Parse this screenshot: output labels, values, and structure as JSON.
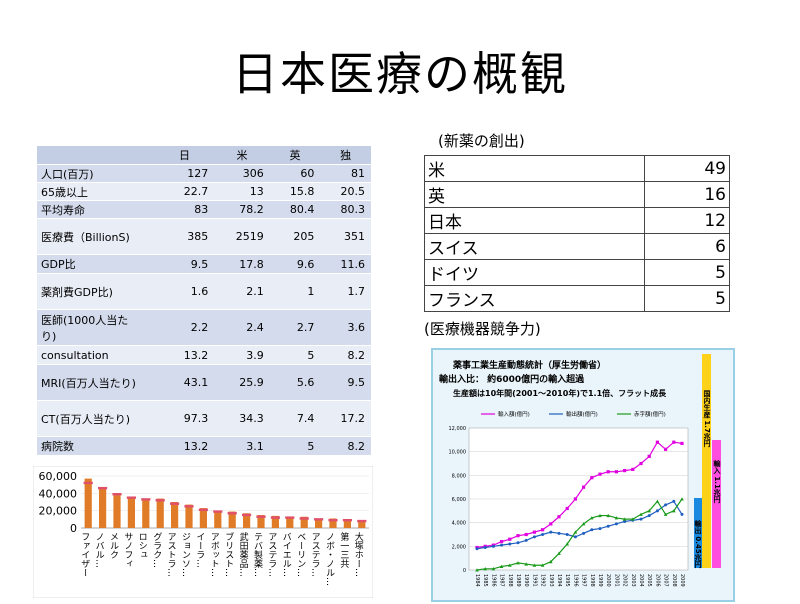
{
  "title": "日本医療の概観",
  "stats_table": {
    "headers": [
      "",
      "日",
      "米",
      "英",
      "独"
    ],
    "rows": [
      {
        "label": "人口(百万)",
        "values": [
          "127",
          "306",
          "60",
          "81"
        ]
      },
      {
        "label": "65歳以上",
        "values": [
          "22.7",
          "13",
          "15.8",
          "20.5"
        ]
      },
      {
        "label": "平均寿命",
        "values": [
          "83",
          "78.2",
          "80.4",
          "80.3"
        ]
      },
      {
        "label": "医療費（BillionS)",
        "values": [
          "385",
          "2519",
          "205",
          "351"
        ]
      },
      {
        "label": "GDP比",
        "values": [
          "9.5",
          "17.8",
          "9.6",
          "11.6"
        ]
      },
      {
        "label": "薬剤費GDP比)",
        "values": [
          "1.6",
          "2.1",
          "1",
          "1.7"
        ]
      },
      {
        "label": "医師(1000人当たり)",
        "values": [
          "2.2",
          "2.4",
          "2.7",
          "3.6"
        ]
      },
      {
        "label": "consultation",
        "values": [
          "13.2",
          "3.9",
          "5",
          "8.2"
        ]
      },
      {
        "label": "MRI(百万人当たり)",
        "values": [
          "43.1",
          "25.9",
          "5.6",
          "9.5"
        ]
      },
      {
        "label": "CT(百万人当たり)",
        "values": [
          "97.3",
          "34.3",
          "7.4",
          "17.2"
        ]
      },
      {
        "label": "病院数",
        "values": [
          "13.2",
          "3.1",
          "5",
          "8.2"
        ]
      }
    ]
  },
  "new_drugs": {
    "heading": "(新薬の創出)",
    "rows": [
      {
        "country": "米",
        "count": "49"
      },
      {
        "country": "英",
        "count": "16"
      },
      {
        "country": "日本",
        "count": "12"
      },
      {
        "country": "スイス",
        "count": "6"
      },
      {
        "country": "ドイツ",
        "count": "5"
      },
      {
        "country": "フランス",
        "count": "5"
      }
    ]
  },
  "devices": {
    "heading": "(医療機器競争力)",
    "text_line1": "薬事工業生産動態統計（厚生労働省）",
    "text_line2": "輸出入比： 約6000億円の輸入超過",
    "text_line3": "生産額は10年間(2001～2010年)で1.1倍、フラット成長",
    "bar_label_domestic": "国内生産 1.7兆円",
    "bar_label_import": "輸入 1.1兆円",
    "bar_label_export": "輸出 0.45兆円"
  },
  "colors": {
    "import": "#e000e0",
    "export": "#1f5fbf",
    "trade_balance": "#1a9a1a",
    "pharma_bar": "#e07b28",
    "pharma_marker": "#e0506a",
    "domestic_bar": "#ffd21a",
    "import_bar": "#ff4de0",
    "export_bar": "#1a8ae0"
  },
  "chart_data": [
    {
      "type": "line",
      "title": "",
      "legend": [
        "輸入額(億円)",
        "輸出額(億円)",
        "赤字額(億円)"
      ],
      "legend_position": "top",
      "ylim": [
        0,
        12000
      ],
      "yticks": [
        "0",
        "2,000",
        "4,000",
        "6,000",
        "8,000",
        "10,000",
        "12,000"
      ],
      "x": [
        "1984",
        "1985",
        "1986",
        "1987",
        "1988",
        "1989",
        "1990",
        "1991",
        "1992",
        "1993",
        "1994",
        "1995",
        "1996",
        "1997",
        "1998",
        "1999",
        "2000",
        "2001",
        "2002",
        "2003",
        "2004",
        "2005",
        "2006",
        "2007",
        "2008",
        "2009"
      ],
      "series": [
        {
          "name": "輸入額(億円)",
          "values": [
            1900,
            2000,
            2100,
            2400,
            2600,
            2900,
            3000,
            3200,
            3400,
            3900,
            4500,
            5200,
            6000,
            7000,
            7800,
            8100,
            8300,
            8300,
            8400,
            8500,
            9000,
            9600,
            10800,
            10200,
            10800,
            10700
          ]
        },
        {
          "name": "輸出額(億円)",
          "values": [
            1800,
            1900,
            2000,
            2100,
            2200,
            2300,
            2500,
            2800,
            3000,
            3200,
            3100,
            3000,
            2800,
            3100,
            3400,
            3500,
            3700,
            3900,
            4100,
            4200,
            4300,
            4600,
            5000,
            5500,
            5800,
            4700
          ]
        },
        {
          "name": "赤字額(億円)",
          "values": [
            0,
            100,
            100,
            300,
            400,
            600,
            500,
            400,
            400,
            700,
            1400,
            2200,
            3200,
            3900,
            4400,
            4600,
            4600,
            4400,
            4300,
            4300,
            4700,
            5000,
            5800,
            4700,
            5000,
            6000
          ]
        }
      ]
    },
    {
      "type": "bar",
      "title": "",
      "ylim": [
        0,
        60000
      ],
      "yticks": [
        "0",
        "20,000",
        "40,000",
        "60,000"
      ],
      "categories": [
        "ファイザー",
        "ノバル…",
        "メルク",
        "サノフィ",
        "ロシュ",
        "グラク…",
        "アストラ…",
        "ジョンソ…",
        "イーラ…",
        "アボット…",
        "ブリスト…",
        "武田薬品…",
        "テバ製薬…",
        "アステラ…",
        "バイエル…",
        "ベーリン…",
        "アステラ…",
        "ノボ・ノル…",
        "第一三共",
        "大塚ホー…"
      ],
      "values": [
        57000,
        47000,
        40000,
        36000,
        34000,
        34000,
        30000,
        27000,
        23000,
        20000,
        19000,
        17000,
        15000,
        14000,
        13000,
        13000,
        11000,
        11000,
        10000,
        9000
      ],
      "markers": [
        52000,
        46000,
        39000,
        35000,
        33000,
        32000,
        28000,
        25000,
        21000,
        19000,
        17000,
        15000,
        13000,
        12000,
        12000,
        11000,
        10000,
        9000,
        9000,
        8000
      ]
    }
  ]
}
